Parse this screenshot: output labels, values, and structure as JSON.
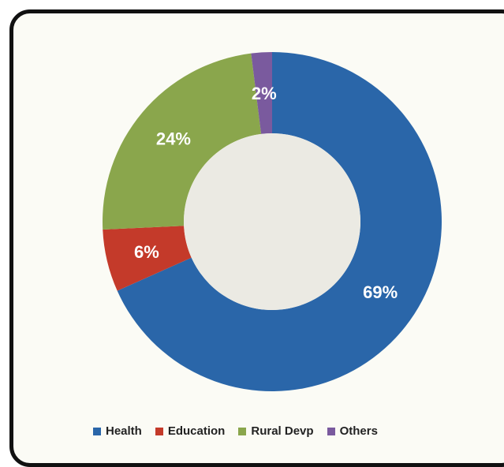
{
  "chart_data": {
    "type": "pie",
    "variant": "donut",
    "categories": [
      "Health",
      "Education",
      "Rural Devp",
      "Others"
    ],
    "values": [
      69,
      6,
      24,
      2
    ],
    "labels": [
      "69%",
      "6%",
      "24%",
      "2%"
    ],
    "colors": [
      "#2a66a9",
      "#c43a2a",
      "#8aa64c",
      "#7a5a9e"
    ],
    "hole_color": "#ebeae3",
    "legend_position": "bottom"
  }
}
